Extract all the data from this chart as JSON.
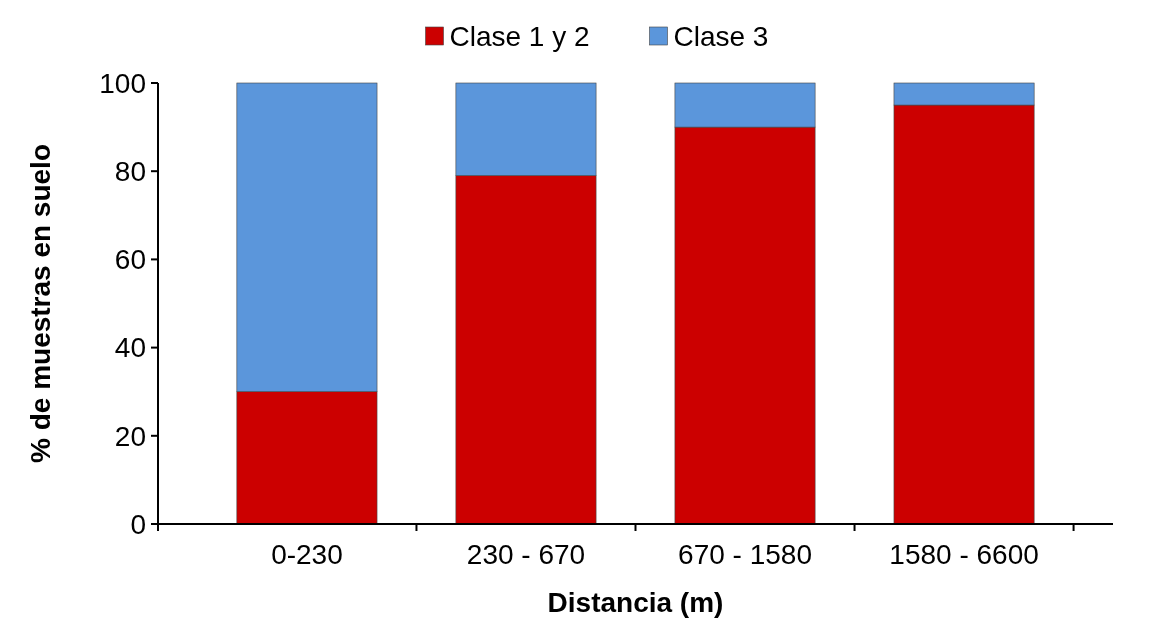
{
  "chart_data": {
    "type": "bar",
    "stacked": true,
    "xlabel": "Distancia (m)",
    "ylabel": "% de muestras en suelo",
    "categories": [
      "0-230",
      "230 - 670",
      "670 - 1580",
      "1580 - 6600"
    ],
    "series": [
      {
        "name": "Clase 1 y  2",
        "color": "#cc0000",
        "values": [
          30,
          79,
          90,
          95
        ]
      },
      {
        "name": "Clase 3",
        "color": "#5b96db",
        "values": [
          70,
          21,
          10,
          5
        ]
      }
    ],
    "ylim": [
      0,
      100
    ],
    "yticks": [
      0,
      20,
      40,
      60,
      80,
      100
    ],
    "grid": false,
    "legend": "top"
  }
}
